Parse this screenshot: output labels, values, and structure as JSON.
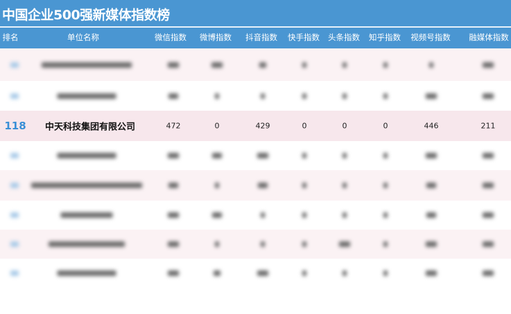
{
  "title": "中国企业500强新媒体指数榜",
  "columns": [
    "排名",
    "单位名称",
    "微信指数",
    "微博指数",
    "抖音指数",
    "快手指数",
    "头条指数",
    "知乎指数",
    "视频号指数",
    "融媒体指数"
  ],
  "highlighted_row": {
    "rank": "118",
    "name": "中天科技集团有限公司",
    "values": [
      "472",
      "0",
      "429",
      "0",
      "0",
      "0",
      "446",
      "211"
    ]
  },
  "colors": {
    "header_bg": "#4a96d2",
    "rank_text": "#3a8fd6",
    "highlight_bg": "#f7e7ec",
    "stripe_bg": "#fbf2f4"
  }
}
